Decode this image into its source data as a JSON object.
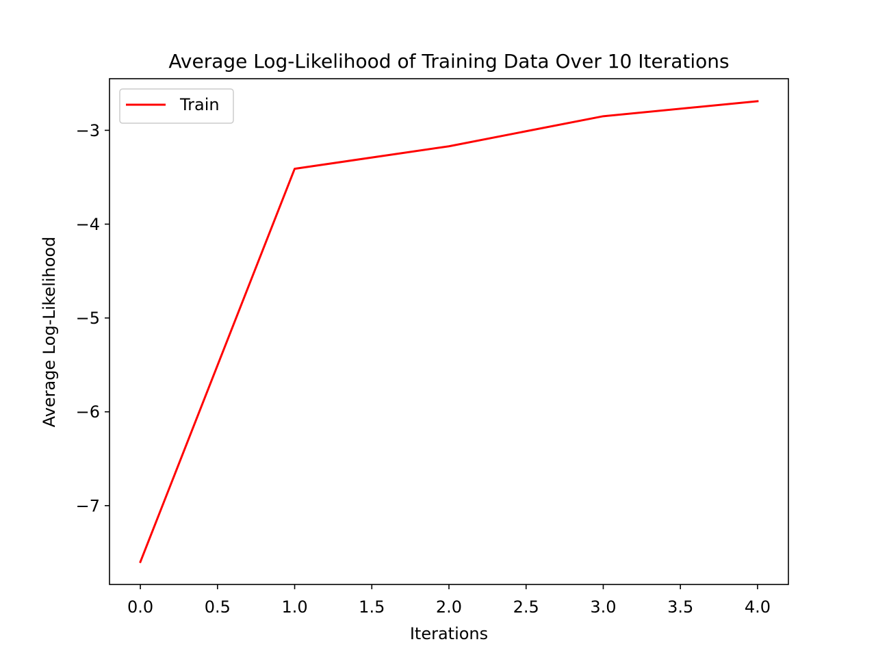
{
  "chart_data": {
    "type": "line",
    "title": "Average Log-Likelihood of Training Data Over 10 Iterations",
    "xlabel": "Iterations",
    "ylabel": "Average Log-Likelihood",
    "xlim": [
      -0.2,
      4.2
    ],
    "ylim": [
      -7.84,
      -2.45
    ],
    "x_ticks": [
      0.0,
      0.5,
      1.0,
      1.5,
      2.0,
      2.5,
      3.0,
      3.5,
      4.0
    ],
    "x_tick_labels": [
      "0.0",
      "0.5",
      "1.0",
      "1.5",
      "2.0",
      "2.5",
      "3.0",
      "3.5",
      "4.0"
    ],
    "y_ticks": [
      -7,
      -6,
      -5,
      -4,
      -3
    ],
    "y_tick_labels": [
      "−7",
      "−6",
      "−5",
      "−4",
      "−3"
    ],
    "grid": false,
    "legend_position": "upper-left",
    "series": [
      {
        "name": "Train",
        "color": "#ff0000",
        "x": [
          0,
          1,
          2,
          3,
          4
        ],
        "y": [
          -7.6,
          -3.41,
          -3.17,
          -2.85,
          -2.69
        ]
      }
    ]
  }
}
